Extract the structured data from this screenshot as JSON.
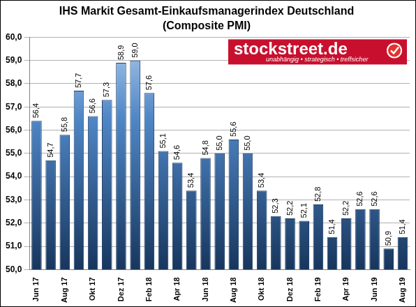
{
  "chart_data": {
    "type": "bar",
    "title": "IHS Markit Gesamt-Einkaufsmanagerindex Deutschland",
    "subtitle": "(Composite PMI)",
    "annotations": [
      "stockstreet.de",
      "unabhängig • strategisch • treffsicher"
    ],
    "categories": [
      "Jun 17",
      null,
      "Aug 17",
      null,
      "Okt 17",
      null,
      "Dez 17",
      null,
      "Feb 18",
      null,
      "Apr 18",
      null,
      "Jun 18",
      null,
      "Aug 18",
      null,
      "Okt 18",
      null,
      "Dez 18",
      null,
      "Feb 19",
      null,
      "Apr 19",
      null,
      "Jun 19",
      null,
      "Aug 19"
    ],
    "values": [
      56.4,
      54.7,
      55.8,
      57.7,
      56.6,
      57.3,
      58.9,
      59.0,
      57.6,
      55.1,
      54.6,
      53.4,
      54.8,
      55.0,
      55.6,
      55.0,
      53.4,
      52.3,
      52.2,
      52.1,
      52.8,
      51.4,
      52.2,
      52.6,
      52.6,
      50.9,
      51.4
    ],
    "value_labels": [
      "56,4",
      "54,7",
      "55,8",
      "57,7",
      "56,6",
      "57,3",
      "58,9",
      "59,0",
      "57,6",
      "55,1",
      "54,6",
      "53,4",
      "54,8",
      "55,0",
      "55,6",
      "55,0",
      "53,4",
      "52,3",
      "52,2",
      "52,1",
      "52,8",
      "51,4",
      "52,2",
      "52,6",
      "52,6",
      "50,9",
      "51,4"
    ],
    "color": "#4f86c6",
    "ylim": [
      50,
      60
    ],
    "yticks": [
      {
        "value": 50,
        "label": "50,0"
      },
      {
        "value": 51,
        "label": "51,0"
      },
      {
        "value": 52,
        "label": "52,0"
      },
      {
        "value": 53,
        "label": "53,0"
      },
      {
        "value": 54,
        "label": "54,0"
      },
      {
        "value": 55,
        "label": "55,0"
      },
      {
        "value": 56,
        "label": "56,0"
      },
      {
        "value": 57,
        "label": "57,0"
      },
      {
        "value": 58,
        "label": "58,0"
      },
      {
        "value": 59,
        "label": "59,0"
      },
      {
        "value": 60,
        "label": "60,0"
      }
    ],
    "grid": true,
    "data_labels": true
  }
}
